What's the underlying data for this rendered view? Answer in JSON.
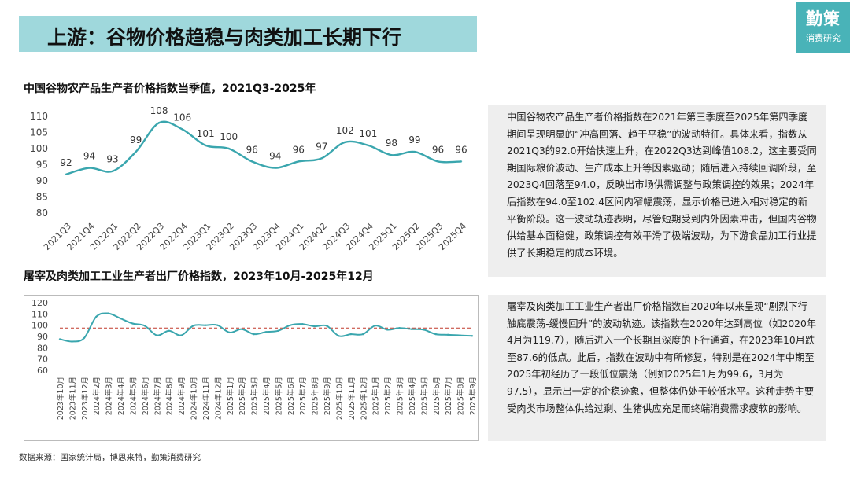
{
  "page": {
    "title": "上游：谷物价格趋稳与肉类加工长期下行",
    "logo_main": "勤策",
    "logo_sub": "消费研究",
    "source": "数据来源：国家统计局，博思来特，勤策消费研究"
  },
  "colors": {
    "accent": "#9fd8dc",
    "logo_bg": "#49b3b8",
    "line": "#3aa6ae",
    "reference": "#c0392b",
    "panel_bg": "#eeeeee"
  },
  "chart_data": [
    {
      "type": "line",
      "title": "中国谷物农产品生产者价格指数当季值，2021Q3-2025年",
      "categories": [
        "2021Q3",
        "2021Q4",
        "2022Q1",
        "2022Q2",
        "2022Q3",
        "2022Q4",
        "2023Q1",
        "2023Q2",
        "2023Q3",
        "2023Q4",
        "2024Q1",
        "2024Q2",
        "2024Q3",
        "2024Q4",
        "2025Q1",
        "2025Q2",
        "2025Q3",
        "2025Q4"
      ],
      "values": [
        92,
        94,
        93,
        99,
        108,
        106,
        101,
        100,
        96,
        94,
        96,
        97,
        102,
        101,
        98,
        99,
        96,
        96
      ],
      "data_labels": [
        "92",
        "94",
        "93",
        "99",
        "108",
        "106",
        "101",
        "100",
        "96",
        "94",
        "96",
        "97",
        "102",
        "101",
        "98",
        "99",
        "96",
        "96"
      ],
      "ylim": [
        80,
        110
      ],
      "yticks": [
        "80",
        "85",
        "90",
        "95",
        "100",
        "105",
        "110"
      ],
      "grid": false,
      "legend": "none"
    },
    {
      "type": "line",
      "title": "屠宰及肉类加工工业生产者出厂价格指数，2023年10月-2025年12月",
      "categories": [
        "2023年10月",
        "2023年11月",
        "2023年12月",
        "2024年2月",
        "2024年3月",
        "2024年4月",
        "2024年5月",
        "2024年6月",
        "2024年7月",
        "2024年8月",
        "2024年9月",
        "2024年10月",
        "2024年11月",
        "2024年12月",
        "2025年1月",
        "2025年2月",
        "2025年3月",
        "2025年4月",
        "2025年5月",
        "2025年6月",
        "2025年7月",
        "2025年8月",
        "2025年9月",
        "2025年10月",
        "2025年11月",
        "2025年12月",
        "2025年1月",
        "2025年2月",
        "2025年3月",
        "2025年4月",
        "2025年5月",
        "2025年6月",
        "2025年7月",
        "2025年8月",
        "2025年9月"
      ],
      "values": [
        87.6,
        85.5,
        88.5,
        107.5,
        110.5,
        106,
        101.5,
        99.5,
        91,
        95,
        91,
        99.5,
        100,
        100,
        93.5,
        96.5,
        92,
        94,
        95,
        100,
        101,
        99,
        99.5,
        90.5,
        92,
        92,
        99.6,
        96,
        97.5,
        96.5,
        96,
        92,
        91.5,
        91,
        90.5
      ],
      "reference_value": 97.5,
      "ylim": [
        60,
        120
      ],
      "yticks": [
        "60",
        "70",
        "80",
        "90",
        "100",
        "110",
        "120"
      ],
      "grid": false,
      "legend": "none"
    }
  ],
  "panels": {
    "top": "中国谷物农产品生产者价格指数在2021年第三季度至2025年第四季度期间呈现明显的“冲高回落、趋于平稳”的波动特征。具体来看，指数从2021Q3的92.0开始快速上升，在2022Q3达到峰值108.2，这主要受同期国际粮价波动、生产成本上升等因素驱动；随后进入持续回调阶段，至2023Q4回落至94.0，反映出市场供需调整与政策调控的效果；2024年后指数在94.0至102.4区间内窄幅震荡，显示价格已进入相对稳定的新平衡阶段。这一波动轨迹表明，尽管短期受到内外因素冲击，但国内谷物供给基本面稳健，政策调控有效平滑了极端波动，为下游食品加工行业提供了长期稳定的成本环境。",
    "bottom": "屠宰及肉类加工工业生产者出厂价格指数自2020年以来呈现“剧烈下行-触底震荡-缓慢回升”的波动轨迹。该指数在2020年达到高位（如2020年4月为119.7），随后进入一个长期且深度的下行通道，在2023年10月跌至87.6的低点。此后，指数在波动中有所修复，特别是在2024年中期至2025年初经历了一段低位震荡（例如2025年1月为99.6，3月为97.5），显示出一定的企稳迹象，但整体仍处于较低水平。这种走势主要受肉类市场整体供给过剩、生猪供应充足而终端消费需求疲软的影响。"
  }
}
